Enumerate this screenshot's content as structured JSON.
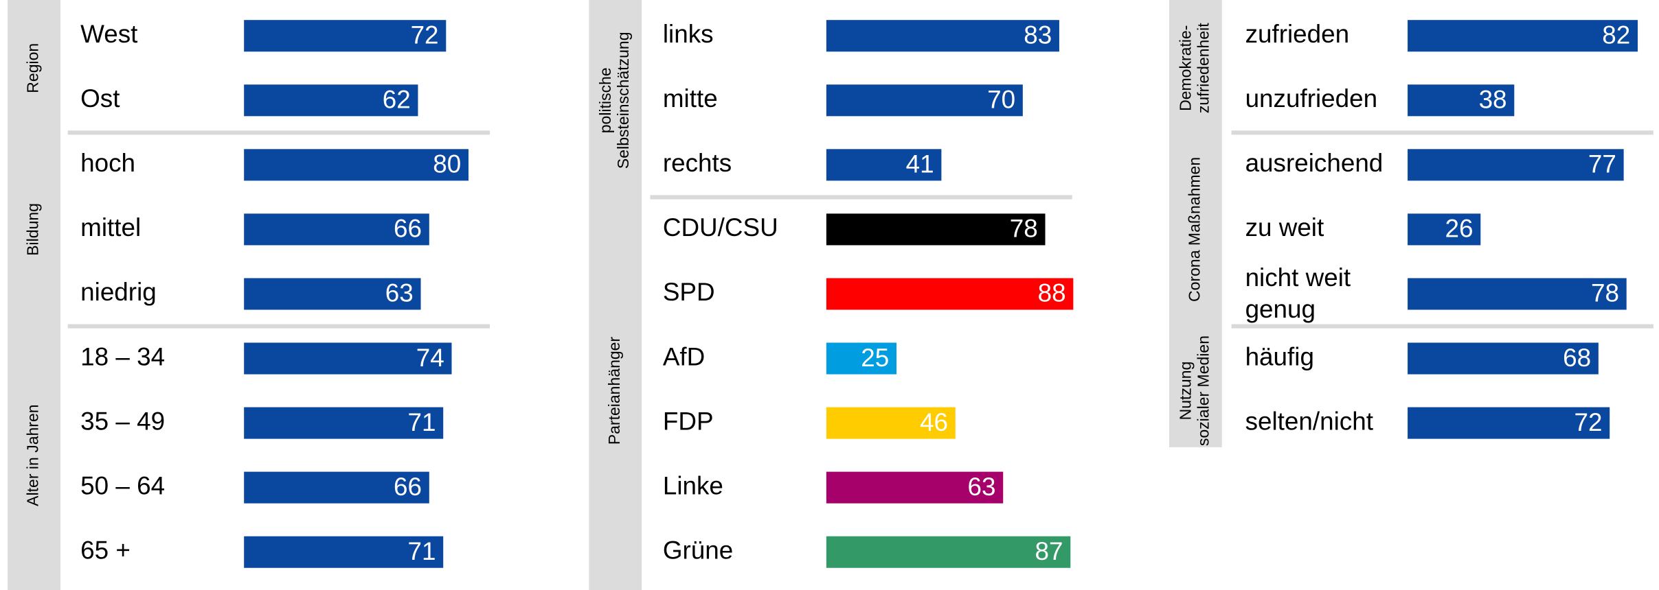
{
  "chart_data": [
    {
      "type": "bar",
      "groups": [
        {
          "label": [
            "Region"
          ],
          "categories": [
            "West",
            "Ost"
          ],
          "values": [
            72,
            62
          ],
          "colors": [
            "#0a479f",
            "#0a479f"
          ]
        },
        {
          "label": [
            "Bildung"
          ],
          "categories": [
            "hoch",
            "mittel",
            "niedrig"
          ],
          "values": [
            80,
            66,
            63
          ],
          "colors": [
            "#0a479f",
            "#0a479f",
            "#0a479f"
          ]
        },
        {
          "label": [
            "Alter in Jahren"
          ],
          "categories": [
            "18 – 34",
            "35 – 49",
            "50 – 64",
            "65 +"
          ],
          "values": [
            74,
            71,
            66,
            71
          ],
          "colors": [
            "#0a479f",
            "#0a479f",
            "#0a479f",
            "#0a479f"
          ]
        }
      ]
    },
    {
      "type": "bar",
      "groups": [
        {
          "label": [
            "politische",
            "Selbsteinschätzung"
          ],
          "categories": [
            "links",
            "mitte",
            "rechts"
          ],
          "values": [
            83,
            70,
            41
          ],
          "colors": [
            "#0a479f",
            "#0a479f",
            "#0a479f"
          ]
        },
        {
          "label": [
            "Parteianhänger"
          ],
          "categories": [
            "CDU/CSU",
            "SPD",
            "AfD",
            "FDP",
            "Linke",
            "Grüne"
          ],
          "values": [
            78,
            88,
            25,
            46,
            63,
            87
          ],
          "colors": [
            "#000000",
            "#ff0000",
            "#009ee0",
            "#ffcc00",
            "#a6006b",
            "#339966"
          ]
        }
      ]
    },
    {
      "type": "bar",
      "groups": [
        {
          "label": [
            "Demokratie-",
            "zufriedenheit"
          ],
          "categories": [
            "zufrieden",
            "unzufrieden"
          ],
          "values": [
            82,
            38
          ],
          "colors": [
            "#0a479f",
            "#0a479f"
          ]
        },
        {
          "label": [
            "Corona Maßnahmen"
          ],
          "categories": [
            "ausreichend",
            "zu weit",
            "nicht weit genug"
          ],
          "values": [
            77,
            26,
            78
          ],
          "colors": [
            "#0a479f",
            "#0a479f",
            "#0a479f"
          ]
        },
        {
          "label": [
            "Nutzung",
            "sozialer Medien"
          ],
          "categories": [
            "häufig",
            "selten/nicht"
          ],
          "values": [
            68,
            72
          ],
          "colors": [
            "#0a479f",
            "#0a479f"
          ]
        }
      ]
    }
  ]
}
